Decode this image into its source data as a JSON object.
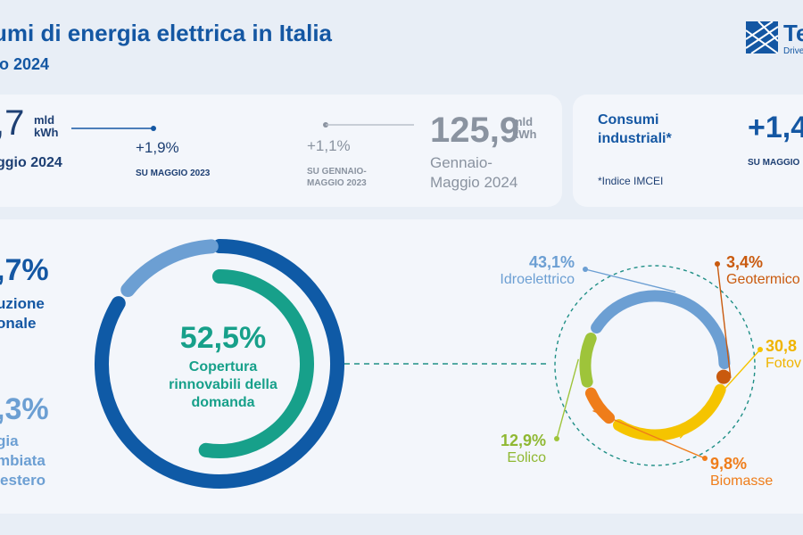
{
  "header": {
    "title": "umi di energia elettrica in Italia",
    "subtitle": "io 2024"
  },
  "logo": {
    "text": "Te",
    "tagline": "Drive"
  },
  "monthly": {
    "value": ",7",
    "unit_line1": "mld",
    "unit_line2": "kWh",
    "label": "ggio 2024",
    "change": "+1,9%",
    "change_ref": "SU MAGGIO 2023"
  },
  "ytd": {
    "change": "+1,1%",
    "change_ref_line1": "SU GENNAIO-",
    "change_ref_line2": "MAGGIO 2023",
    "value": "125,9",
    "unit_line1": "mld",
    "unit_line2": "kWh",
    "label_line1": "Gennaio-",
    "label_line2": "Maggio 2024"
  },
  "industrial": {
    "label_line1": "Consumi",
    "label_line2": "industriali*",
    "note": "*Indice IMCEI",
    "value": "+1,4",
    "change_ref": "SU MAGGIO"
  },
  "left": {
    "national_pct": ",7%",
    "national_line1": "uzione",
    "national_line2": "onale",
    "foreign_pct": ",3%",
    "foreign_line1": "gia",
    "foreign_line2": "mbiata",
    "foreign_line3": "'estero"
  },
  "center": {
    "pct": "52,5%",
    "label_line1": "Copertura",
    "label_line2": "rinnovabili della",
    "label_line3": "domanda"
  },
  "colors": {
    "national": "#0f5aa6",
    "foreign": "#6c9fd3",
    "renewable": "#17a08a",
    "hydro": "#6c9fd3",
    "geothermal": "#c95a0e",
    "solar": "#f5c400",
    "biomass": "#ef7d1a",
    "wind": "#9ec43a"
  },
  "chart_data": [
    {
      "type": "pie",
      "title": "",
      "categories": [
        "",
        ""
      ],
      "values": [
        84.7,
        15.3
      ],
      "inner_arc": {
        "value": 52.5,
        "label": "Copertura rinnovabili della domanda"
      }
    },
    {
      "type": "pie",
      "title": "",
      "categories": [
        "Idroelettrico",
        "Geotermico",
        "Fotov",
        "Biomasse",
        "Eolico"
      ],
      "values": [
        43.1,
        3.4,
        30.8,
        9.8,
        12.9
      ],
      "labels": [
        "43,1%",
        "3,4%",
        "30,8",
        "9,8%",
        "12,9%"
      ]
    }
  ]
}
